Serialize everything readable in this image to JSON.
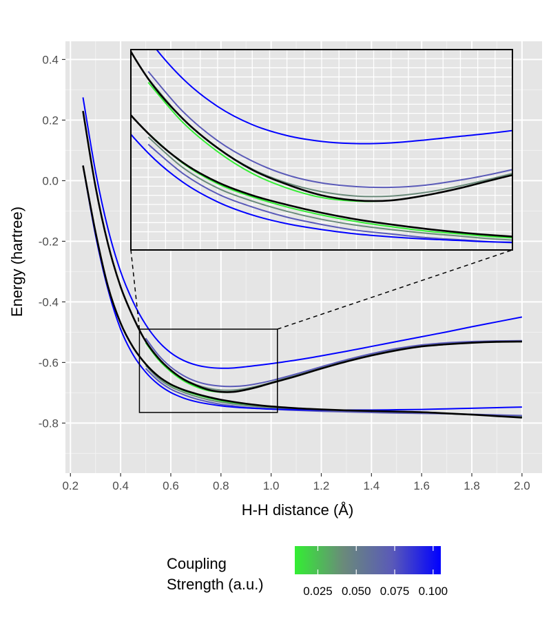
{
  "chart_data": {
    "type": "line",
    "xlabel": "H-H distance (Å)",
    "ylabel": "Energy (hartree)",
    "xlim": [
      0.18,
      2.08
    ],
    "ylim": [
      -0.965,
      0.46
    ],
    "x_ticks": [
      "0.2",
      "0.4",
      "0.6",
      "0.8",
      "1.0",
      "1.2",
      "1.4",
      "1.6",
      "1.8",
      "2.0"
    ],
    "y_ticks": [
      "0.4",
      "0.2",
      "0.0",
      "-0.2",
      "-0.4",
      "-0.6",
      "-0.8"
    ],
    "grid": true,
    "colors": {
      "panel": "#e5e5e5",
      "grid_major": "#ffffff",
      "uncoupled": "#000000",
      "low_coupling": "#33ee33",
      "high_coupling": "#0000ff"
    },
    "legend": {
      "title": "Coupling\nStrength (a.u.)",
      "position": "bottom",
      "gradient": [
        "#33ee33",
        "#6a8a7a",
        "#5a5ab8",
        "#0000ff"
      ],
      "tick_labels": [
        "0.025",
        "0.050",
        "0.075",
        "0.100"
      ]
    },
    "series": [
      {
        "color": "#000000",
        "x": [
          0.25,
          0.3,
          0.35,
          0.4,
          0.45,
          0.5,
          0.55,
          0.6,
          0.65,
          0.7,
          0.75,
          0.8,
          0.85,
          0.9,
          0.95,
          1.0,
          1.1,
          1.2,
          1.3,
          1.4,
          1.5,
          1.6,
          1.7,
          1.8,
          1.9,
          2.0
        ],
        "y": [
          0.23,
          -0.02,
          -0.21,
          -0.35,
          -0.45,
          -0.53,
          -0.585,
          -0.625,
          -0.655,
          -0.675,
          -0.69,
          -0.697,
          -0.697,
          -0.69,
          -0.68,
          -0.668,
          -0.645,
          -0.62,
          -0.597,
          -0.577,
          -0.56,
          -0.547,
          -0.54,
          -0.535,
          -0.532,
          -0.531
        ]
      },
      {
        "color": "#000000",
        "x": [
          0.25,
          0.3,
          0.35,
          0.4,
          0.45,
          0.5,
          0.55,
          0.6,
          0.65,
          0.7,
          0.75,
          0.8,
          0.85,
          0.9,
          0.95,
          1.0,
          1.1,
          1.2,
          1.3,
          1.4,
          1.5,
          1.6,
          1.7,
          1.8,
          1.9,
          2.0
        ],
        "y": [
          0.05,
          -0.17,
          -0.35,
          -0.47,
          -0.55,
          -0.605,
          -0.645,
          -0.672,
          -0.69,
          -0.703,
          -0.714,
          -0.723,
          -0.73,
          -0.736,
          -0.741,
          -0.745,
          -0.751,
          -0.755,
          -0.758,
          -0.76,
          -0.762,
          -0.764,
          -0.768,
          -0.772,
          -0.777,
          -0.782
        ]
      },
      {
        "color": "#33ee33",
        "x": [
          0.5,
          0.55,
          0.6,
          0.65,
          0.7,
          0.75,
          0.8,
          0.85,
          0.9,
          0.95,
          1.0,
          1.1,
          1.2,
          1.3,
          1.4,
          1.5,
          1.6,
          1.7,
          1.8,
          1.9,
          2.0
        ],
        "y": [
          -0.535,
          -0.59,
          -0.63,
          -0.66,
          -0.68,
          -0.693,
          -0.698,
          -0.697,
          -0.69,
          -0.68,
          -0.668,
          -0.643,
          -0.618,
          -0.595,
          -0.575,
          -0.558,
          -0.546,
          -0.538,
          -0.534,
          -0.532,
          -0.531
        ]
      },
      {
        "color": "#33ee33",
        "x": [
          0.5,
          0.55,
          0.6,
          0.65,
          0.7,
          0.75,
          0.8,
          0.85,
          0.9,
          0.95,
          1.0,
          1.1,
          1.2,
          1.3,
          1.4,
          1.5,
          1.6,
          1.7,
          1.8,
          1.9,
          2.0
        ],
        "y": [
          -0.605,
          -0.646,
          -0.674,
          -0.692,
          -0.706,
          -0.717,
          -0.726,
          -0.733,
          -0.739,
          -0.743,
          -0.747,
          -0.752,
          -0.756,
          -0.759,
          -0.761,
          -0.763,
          -0.765,
          -0.768,
          -0.772,
          -0.776,
          -0.78
        ]
      },
      {
        "color": "#6a8a7a",
        "x": [
          0.5,
          0.55,
          0.6,
          0.65,
          0.7,
          0.75,
          0.8,
          0.85,
          0.9,
          0.95,
          1.0,
          1.1,
          1.2,
          1.3,
          1.4,
          1.5,
          1.6,
          1.7,
          1.8,
          1.9,
          2.0
        ],
        "y": [
          -0.53,
          -0.585,
          -0.625,
          -0.654,
          -0.673,
          -0.685,
          -0.691,
          -0.691,
          -0.686,
          -0.677,
          -0.666,
          -0.642,
          -0.617,
          -0.594,
          -0.574,
          -0.557,
          -0.545,
          -0.537,
          -0.533,
          -0.531,
          -0.529
        ]
      },
      {
        "color": "#6a8a7a",
        "x": [
          0.5,
          0.55,
          0.6,
          0.65,
          0.7,
          0.75,
          0.8,
          0.85,
          0.9,
          0.95,
          1.0,
          1.1,
          1.2,
          1.3,
          1.4,
          1.5,
          1.6,
          1.7,
          1.8,
          1.9,
          2.0
        ],
        "y": [
          -0.61,
          -0.652,
          -0.68,
          -0.698,
          -0.712,
          -0.723,
          -0.731,
          -0.737,
          -0.742,
          -0.746,
          -0.75,
          -0.755,
          -0.758,
          -0.761,
          -0.763,
          -0.765,
          -0.767,
          -0.769,
          -0.772,
          -0.775,
          -0.778
        ]
      },
      {
        "color": "#5a5ab8",
        "x": [
          0.5,
          0.55,
          0.6,
          0.65,
          0.7,
          0.75,
          0.8,
          0.85,
          0.9,
          0.95,
          1.0,
          1.1,
          1.2,
          1.3,
          1.4,
          1.5,
          1.6,
          1.7,
          1.8,
          1.9,
          2.0
        ],
        "y": [
          -0.52,
          -0.575,
          -0.615,
          -0.643,
          -0.662,
          -0.673,
          -0.678,
          -0.679,
          -0.676,
          -0.669,
          -0.66,
          -0.638,
          -0.614,
          -0.591,
          -0.571,
          -0.554,
          -0.542,
          -0.535,
          -0.531,
          -0.529,
          -0.528
        ]
      },
      {
        "color": "#5a5ab8",
        "x": [
          0.5,
          0.55,
          0.6,
          0.65,
          0.7,
          0.75,
          0.8,
          0.85,
          0.9,
          0.95,
          1.0,
          1.1,
          1.2,
          1.3,
          1.4,
          1.5,
          1.6,
          1.7,
          1.8,
          1.9,
          2.0
        ],
        "y": [
          -0.62,
          -0.66,
          -0.688,
          -0.706,
          -0.72,
          -0.73,
          -0.738,
          -0.743,
          -0.748,
          -0.751,
          -0.754,
          -0.758,
          -0.761,
          -0.763,
          -0.765,
          -0.767,
          -0.768,
          -0.769,
          -0.771,
          -0.773,
          -0.775
        ]
      },
      {
        "color": "#0000ff",
        "x": [
          0.25,
          0.3,
          0.35,
          0.4,
          0.45,
          0.5,
          0.55,
          0.6,
          0.65,
          0.7,
          0.75,
          0.8,
          0.85,
          0.9,
          0.95,
          1.0,
          1.1,
          1.2,
          1.3,
          1.4,
          1.5,
          1.6,
          1.7,
          1.8,
          1.9,
          2.0
        ],
        "y": [
          0.275,
          0.03,
          -0.16,
          -0.3,
          -0.4,
          -0.475,
          -0.53,
          -0.568,
          -0.593,
          -0.608,
          -0.616,
          -0.619,
          -0.618,
          -0.614,
          -0.609,
          -0.604,
          -0.592,
          -0.578,
          -0.563,
          -0.547,
          -0.531,
          -0.515,
          -0.499,
          -0.482,
          -0.466,
          -0.45
        ]
      },
      {
        "color": "#0000ff",
        "x": [
          0.25,
          0.3,
          0.35,
          0.4,
          0.45,
          0.5,
          0.55,
          0.6,
          0.65,
          0.7,
          0.75,
          0.8,
          0.85,
          0.9,
          0.95,
          1.0,
          1.1,
          1.2,
          1.3,
          1.4,
          1.5,
          1.6,
          1.7,
          1.8,
          1.9,
          2.0
        ],
        "y": [
          0.05,
          -0.18,
          -0.36,
          -0.49,
          -0.575,
          -0.632,
          -0.672,
          -0.699,
          -0.717,
          -0.729,
          -0.737,
          -0.743,
          -0.747,
          -0.75,
          -0.752,
          -0.754,
          -0.756,
          -0.757,
          -0.757,
          -0.757,
          -0.756,
          -0.755,
          -0.753,
          -0.751,
          -0.749,
          -0.747
        ]
      }
    ],
    "zoom_region": {
      "xlim": [
        0.475,
        1.025
      ],
      "ylim": [
        -0.765,
        -0.49
      ]
    }
  }
}
